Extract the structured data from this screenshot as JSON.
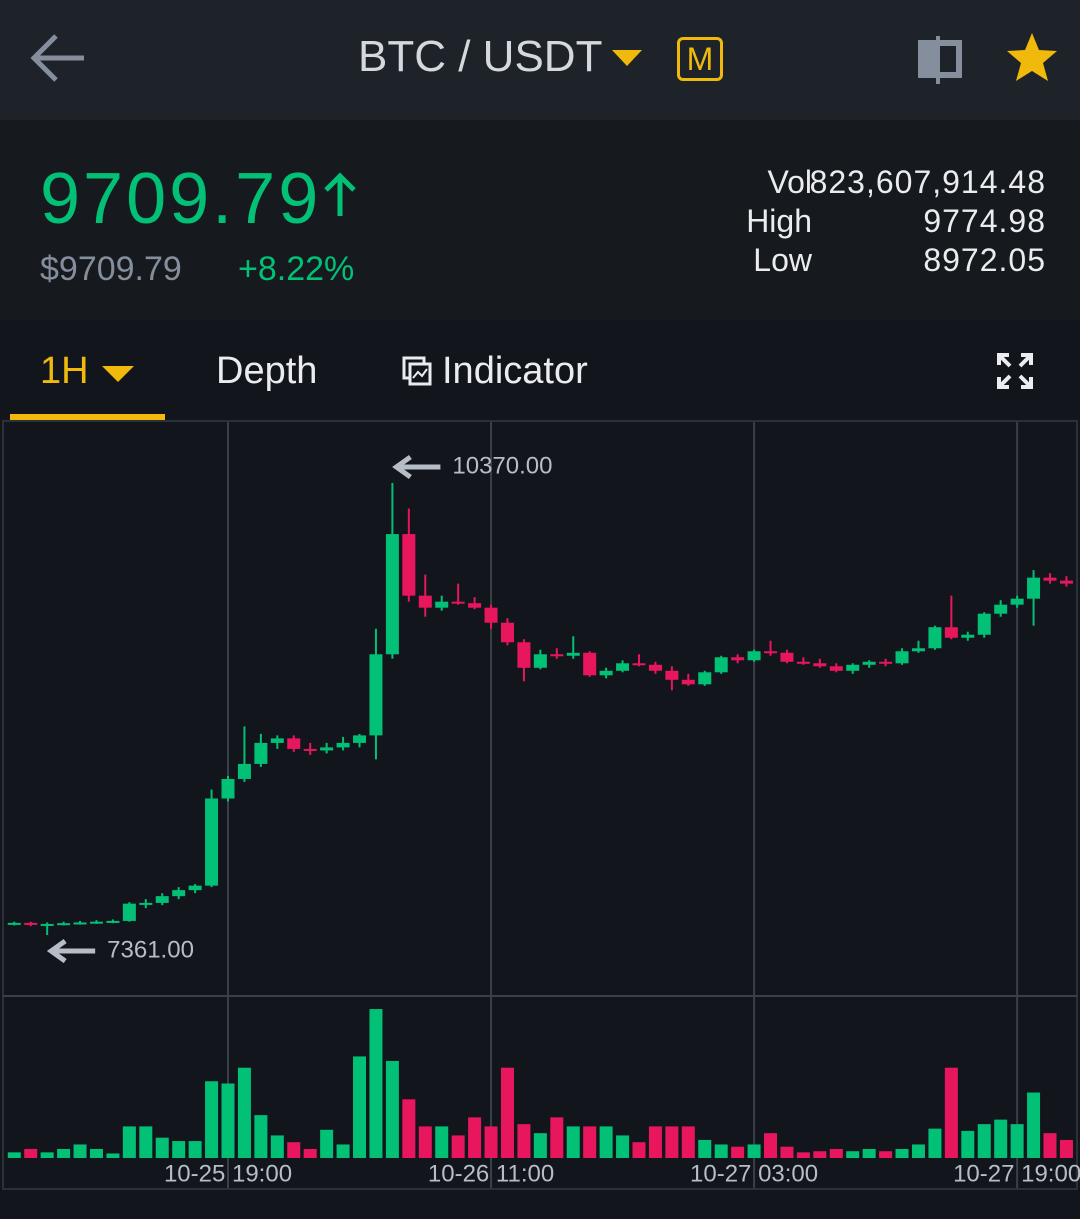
{
  "header": {
    "pair": "BTC / USDT",
    "badge": "M"
  },
  "ticker": {
    "price": "9709.79",
    "price_usd": "$9709.79",
    "change": "+8.22%",
    "stats": [
      {
        "label": "Vol",
        "value": "823,607,914.48"
      },
      {
        "label": "High",
        "value": "9774.98"
      },
      {
        "label": "Low",
        "value": "8972.05"
      }
    ]
  },
  "tabs": [
    "1H",
    "Depth",
    "Indicator"
  ],
  "chart_data": {
    "type": "candlestick",
    "categories": [
      null,
      null,
      null,
      null,
      null,
      null,
      null,
      null,
      null,
      null,
      null,
      null,
      null,
      "10-25 19:00",
      null,
      null,
      null,
      null,
      null,
      null,
      null,
      null,
      null,
      null,
      null,
      null,
      null,
      null,
      null,
      "10-26 11:00",
      null,
      null,
      null,
      null,
      null,
      null,
      null,
      null,
      null,
      null,
      null,
      null,
      null,
      null,
      null,
      "10-27 03:00",
      null,
      null,
      null,
      null,
      null,
      null,
      null,
      null,
      null,
      null,
      null,
      null,
      null,
      null,
      null,
      "10-27 19:00",
      null,
      null,
      null
    ],
    "open": [
      7438,
      7442,
      7430,
      7435,
      7440,
      7445,
      7450,
      7455,
      7570,
      7575,
      7620,
      7660,
      7690,
      8270,
      8400,
      8500,
      8640,
      8670,
      8600,
      8590,
      8610,
      8640,
      8690,
      9230,
      10030,
      9620,
      9540,
      9580,
      9570,
      9540,
      9440,
      9310,
      9140,
      9230,
      9220,
      9240,
      9090,
      9120,
      9170,
      9160,
      9120,
      9060,
      9030,
      9110,
      9210,
      9190,
      9250,
      9240,
      9180,
      9170,
      9150,
      9120,
      9160,
      9180,
      9170,
      9250,
      9270,
      9410,
      9340,
      9360,
      9500,
      9560,
      9600,
      9740,
      9720
    ],
    "high": [
      7450,
      7450,
      7445,
      7450,
      7455,
      7460,
      7465,
      7580,
      7600,
      7640,
      7680,
      7700,
      8330,
      8420,
      8750,
      8700,
      8690,
      8690,
      8640,
      8640,
      8680,
      8700,
      9400,
      10370,
      10200,
      9760,
      9620,
      9700,
      9610,
      9560,
      9470,
      9330,
      9260,
      9270,
      9350,
      9250,
      9140,
      9190,
      9230,
      9180,
      9150,
      9100,
      9120,
      9220,
      9230,
      9260,
      9320,
      9260,
      9210,
      9200,
      9170,
      9170,
      9190,
      9200,
      9270,
      9320,
      9420,
      9620,
      9380,
      9510,
      9590,
      9620,
      9790,
      9770,
      9750
    ],
    "low": [
      7425,
      7420,
      7361,
      7425,
      7430,
      7435,
      7440,
      7450,
      7540,
      7560,
      7600,
      7640,
      7680,
      8250,
      8380,
      8480,
      8600,
      8580,
      8560,
      8570,
      8590,
      8610,
      8530,
      9200,
      9580,
      9480,
      9520,
      9560,
      9530,
      9400,
      9290,
      9050,
      9130,
      9200,
      9200,
      9080,
      9070,
      9110,
      9150,
      9100,
      8990,
      9020,
      9020,
      9100,
      9170,
      9180,
      9220,
      9170,
      9160,
      9140,
      9110,
      9100,
      9140,
      9150,
      9160,
      9240,
      9260,
      9330,
      9320,
      9340,
      9480,
      9540,
      9420,
      9700,
      9680
    ],
    "close": [
      7442,
      7430,
      7435,
      7440,
      7445,
      7450,
      7455,
      7570,
      7575,
      7620,
      7660,
      7690,
      8270,
      8400,
      8500,
      8640,
      8670,
      8600,
      8590,
      8610,
      8640,
      8690,
      9230,
      10030,
      9620,
      9540,
      9580,
      9570,
      9540,
      9440,
      9310,
      9140,
      9230,
      9220,
      9240,
      9090,
      9120,
      9170,
      9160,
      9120,
      9060,
      9030,
      9110,
      9210,
      9190,
      9250,
      9240,
      9180,
      9170,
      9150,
      9120,
      9160,
      9180,
      9170,
      9250,
      9270,
      9410,
      9340,
      9360,
      9500,
      9560,
      9600,
      9740,
      9720,
      9700
    ],
    "volume": [
      5,
      8,
      5,
      8,
      12,
      8,
      4,
      28,
      28,
      18,
      15,
      15,
      68,
      66,
      80,
      38,
      20,
      14,
      8,
      25,
      12,
      90,
      132,
      86,
      52,
      28,
      28,
      20,
      36,
      28,
      80,
      30,
      22,
      36,
      28,
      28,
      28,
      20,
      14,
      28,
      28,
      28,
      16,
      12,
      10,
      12,
      22,
      10,
      5,
      6,
      8,
      6,
      8,
      6,
      8,
      12,
      26,
      80,
      24,
      30,
      34,
      30,
      58,
      22,
      16
    ],
    "ylim": [
      6962,
      10776
    ],
    "volume_ylim": [
      0,
      140
    ],
    "annotations": {
      "high": "10370.00",
      "low": "7361.00"
    },
    "up_color": "#02c076",
    "down_color": "#e8175d",
    "grid": true
  }
}
